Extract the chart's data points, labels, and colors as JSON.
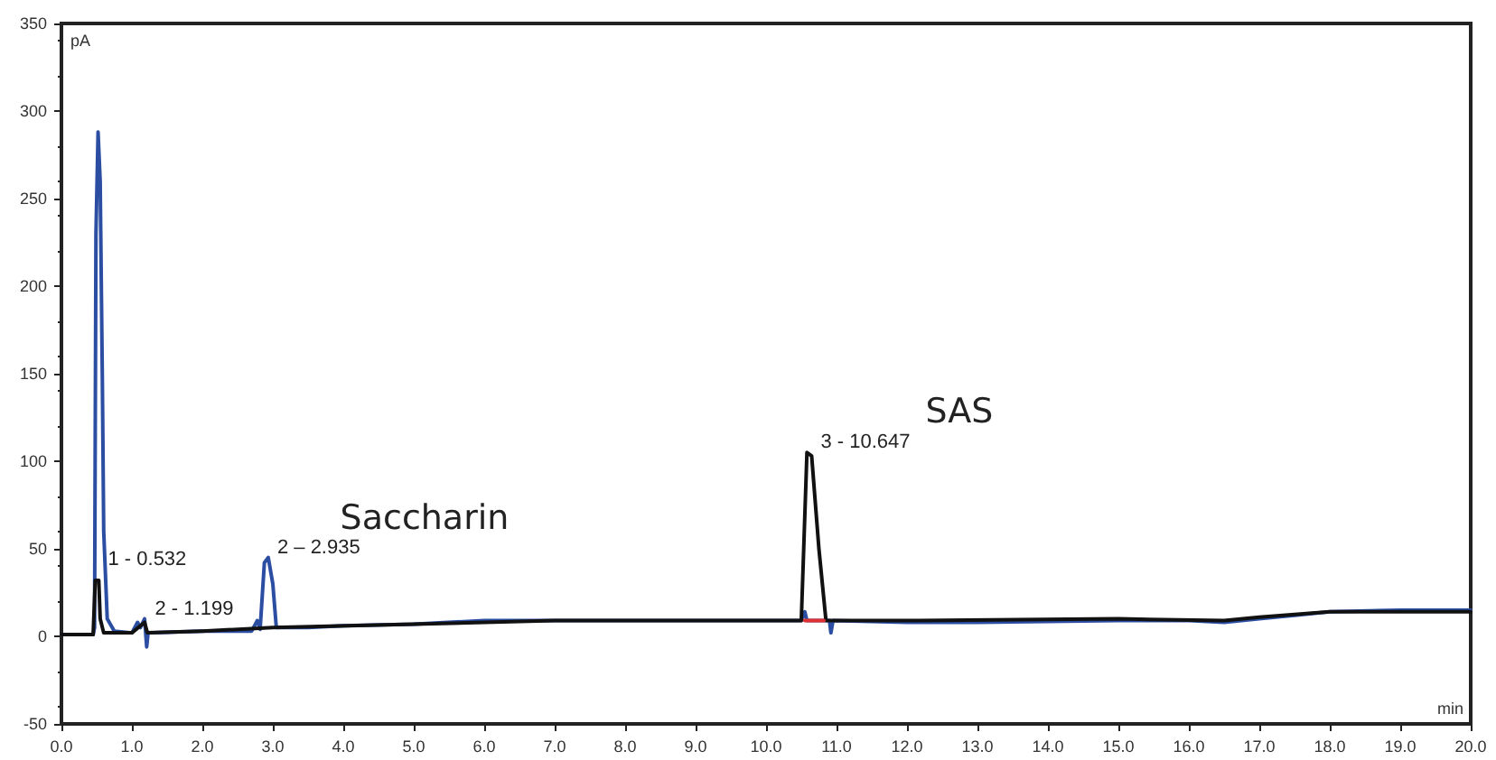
{
  "chart_data": {
    "type": "line",
    "xlabel": "min",
    "ylabel": "pA",
    "xlim": [
      0,
      20
    ],
    "xticks": [
      {
        "value": 0,
        "label": "0.0"
      },
      {
        "value": 1,
        "label": "1.0"
      },
      {
        "value": 2,
        "label": "2.0"
      },
      {
        "value": 3,
        "label": "3.0"
      },
      {
        "value": 4,
        "label": "4.0"
      },
      {
        "value": 5,
        "label": "5.0"
      },
      {
        "value": 6,
        "label": "6.0"
      },
      {
        "value": 7,
        "label": "7.0"
      },
      {
        "value": 8,
        "label": "8.0"
      },
      {
        "value": 9,
        "label": "9.0"
      },
      {
        "value": 10,
        "label": "10.0"
      },
      {
        "value": 11,
        "label": "11.0"
      },
      {
        "value": 12,
        "label": "12.0"
      },
      {
        "value": 13,
        "label": "13.0"
      },
      {
        "value": 14,
        "label": "14.0"
      },
      {
        "value": 15,
        "label": "15.0"
      },
      {
        "value": 16,
        "label": "16.0"
      },
      {
        "value": 17,
        "label": "17.0"
      },
      {
        "value": 18,
        "label": "18.0"
      },
      {
        "value": 19,
        "label": "19.0"
      },
      {
        "value": 20,
        "label": "20.0"
      }
    ],
    "ylim": [
      -50,
      350
    ],
    "yticks": [
      -50,
      0,
      50,
      100,
      150,
      200,
      250,
      300,
      350
    ],
    "grid": false,
    "marker": "none",
    "line_style": "solid",
    "series": [
      {
        "color": "#2b4ea2",
        "x": [
          0,
          0.45,
          0.47,
          0.49,
          0.52,
          0.55,
          0.58,
          0.6,
          0.65,
          0.75,
          1.0,
          1.08,
          1.12,
          1.18,
          1.21,
          1.23,
          1.3,
          2.0,
          2.7,
          2.78,
          2.82,
          2.88,
          2.935,
          3.0,
          3.05,
          3.5,
          4,
          5,
          6,
          7,
          10.5,
          10.55,
          10.58,
          10.9,
          10.92,
          10.95,
          12,
          13,
          15,
          16,
          16.5,
          17,
          17.5,
          18,
          19,
          20
        ],
        "values": [
          1,
          1,
          5,
          230,
          288,
          260,
          150,
          60,
          10,
          3,
          2,
          8,
          5,
          10,
          -6,
          2,
          2,
          3,
          3,
          9,
          4,
          42,
          45,
          30,
          5,
          5,
          6,
          7,
          9,
          9,
          9,
          14,
          9,
          9,
          2,
          9,
          8,
          8,
          9,
          9,
          8,
          10,
          12,
          14,
          15,
          15
        ]
      },
      {
        "color": "#111111",
        "x": [
          0,
          0.45,
          0.48,
          0.53,
          0.55,
          0.6,
          1.0,
          1.18,
          1.22,
          2,
          3,
          5,
          7,
          10.5,
          10.58,
          10.647,
          10.75,
          10.85,
          12,
          15,
          16.5,
          17,
          18,
          20
        ],
        "values": [
          1,
          1,
          32,
          32,
          10,
          2,
          2,
          8,
          2,
          3,
          5,
          7,
          9,
          9,
          105,
          103,
          50,
          9,
          9,
          10,
          9,
          11,
          14,
          14
        ]
      },
      {
        "color": "#e03030",
        "x": [
          10.55,
          10.82
        ],
        "values": [
          9,
          9
        ]
      }
    ],
    "annotations": [
      {
        "text": "1 - 0.532",
        "x": 0.532,
        "y": 38
      },
      {
        "text": "2 - 1.199",
        "x": 1.199,
        "y": 10
      },
      {
        "text": "2 – 2.935",
        "x": 2.935,
        "y": 45
      },
      {
        "text": "3 - 10.647",
        "x": 10.647,
        "y": 105
      },
      "Saccharin",
      "SAS"
    ]
  }
}
